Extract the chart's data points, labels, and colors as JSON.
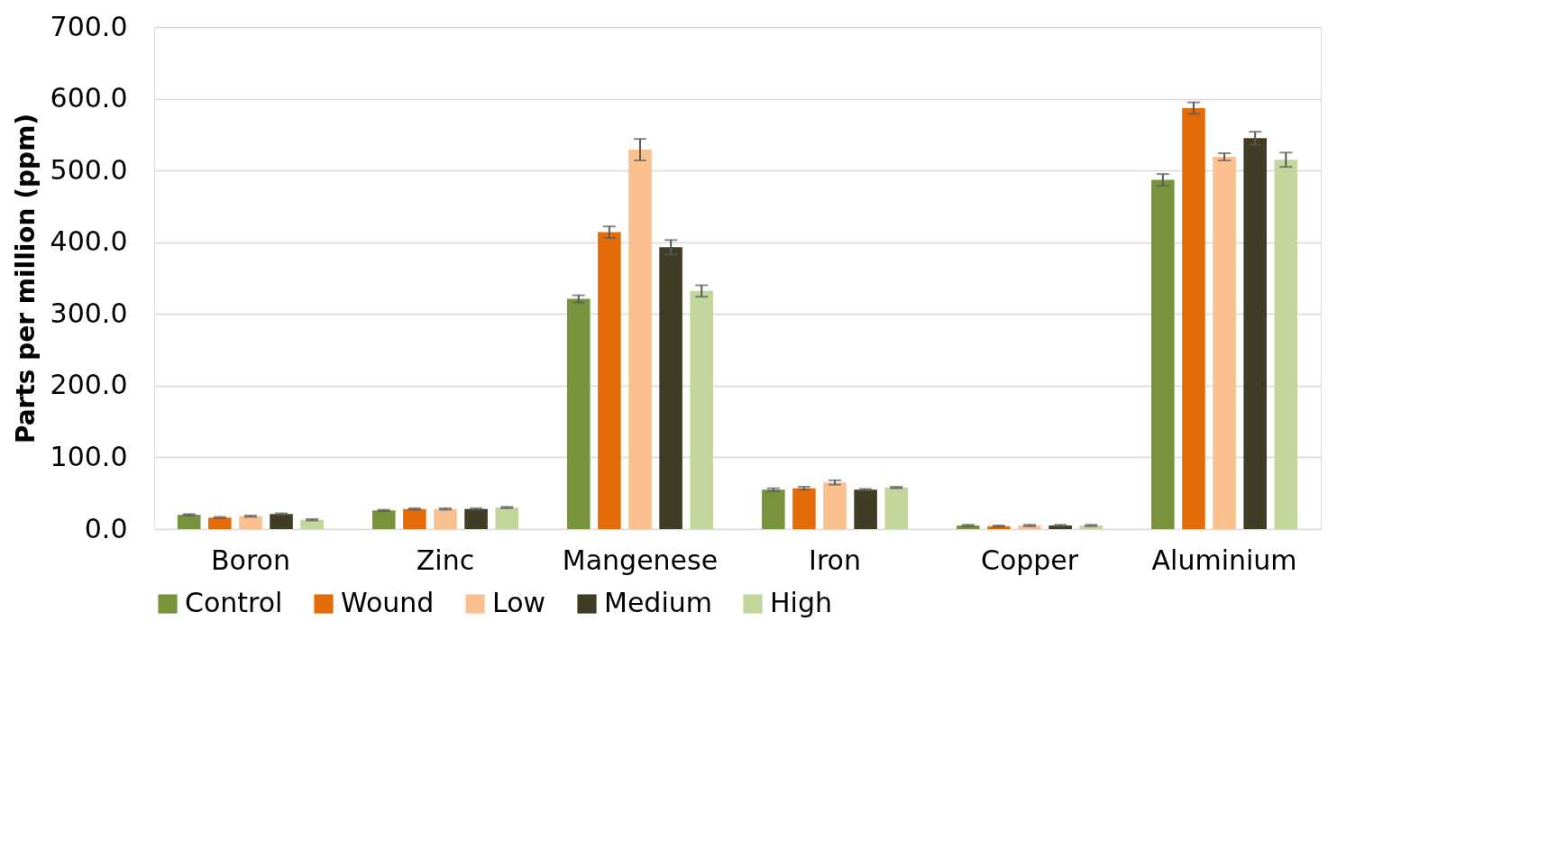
{
  "chart_data": {
    "type": "bar",
    "ylabel": "Parts per million (ppm)",
    "categories": [
      "Boron",
      "Zinc",
      "Mangenese",
      "Iron",
      "Copper",
      "Aluminium"
    ],
    "series": [
      {
        "name": "Control",
        "color": "#77933c",
        "values": [
          20,
          26,
          321,
          55,
          5,
          487
        ],
        "errors": [
          1,
          1,
          5,
          2,
          1,
          8
        ]
      },
      {
        "name": "Wound",
        "color": "#e36c09",
        "values": [
          16,
          28,
          414,
          57,
          4,
          587
        ],
        "errors": [
          1,
          1,
          8,
          2,
          1,
          8
        ]
      },
      {
        "name": "Low",
        "color": "#fac090",
        "values": [
          18,
          28,
          529,
          65,
          5,
          519
        ],
        "errors": [
          1,
          1,
          15,
          3,
          1,
          5
        ]
      },
      {
        "name": "Medium",
        "color": "#403c26",
        "values": [
          21,
          28,
          393,
          55,
          5,
          545
        ],
        "errors": [
          1,
          1,
          10,
          1,
          1,
          9
        ]
      },
      {
        "name": "High",
        "color": "#c3d69b",
        "values": [
          13,
          30,
          332,
          58,
          5,
          515
        ],
        "errors": [
          1,
          1,
          8,
          1,
          1,
          10
        ]
      }
    ],
    "ylim": [
      0,
      700
    ],
    "yticks": [
      {
        "value": 0,
        "label": "0.0"
      },
      {
        "value": 100,
        "label": "100.0"
      },
      {
        "value": 200,
        "label": "200.0"
      },
      {
        "value": 300,
        "label": "300.0"
      },
      {
        "value": 400,
        "label": "400.0"
      },
      {
        "value": 500,
        "label": "500.0"
      },
      {
        "value": 600,
        "label": "600.0"
      },
      {
        "value": 700,
        "label": "700.0"
      }
    ],
    "grid": "y",
    "legend": "bottom"
  }
}
